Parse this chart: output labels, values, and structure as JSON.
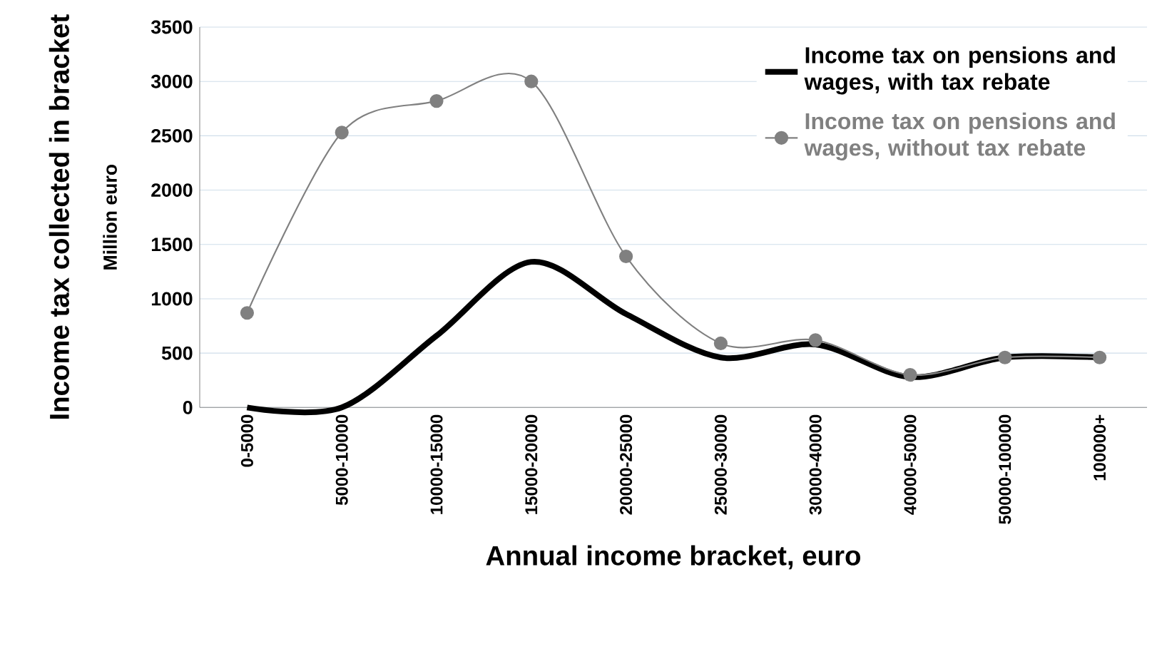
{
  "chart_data": {
    "type": "line",
    "xlabel": "Annual income bracket, euro",
    "ylabel": "Income tax collected in bracket",
    "annotations": [
      "Million euro"
    ],
    "categories": [
      "0-5000",
      "5000-10000",
      "10000-15000",
      "15000-20000",
      "20000-25000",
      "25000-30000",
      "30000-40000",
      "40000-50000",
      "50000-100000",
      "100000+"
    ],
    "series": [
      {
        "name": "Income tax on pensions and wages, with tax rebate",
        "color": "#000000",
        "marker": "none",
        "values": [
          0,
          0,
          660,
          1340,
          860,
          460,
          580,
          280,
          460,
          460
        ]
      },
      {
        "name": "Income tax on pensions and wages, without tax rebate",
        "color": "#808080",
        "marker": "circle",
        "values": [
          870,
          2530,
          2820,
          3000,
          1390,
          590,
          620,
          300,
          460,
          460
        ]
      }
    ],
    "ylim": [
      0,
      3500
    ],
    "yticks": [
      0,
      500,
      1000,
      1500,
      2000,
      2500,
      3000,
      3500
    ],
    "grid": "y",
    "legend": "top right"
  }
}
